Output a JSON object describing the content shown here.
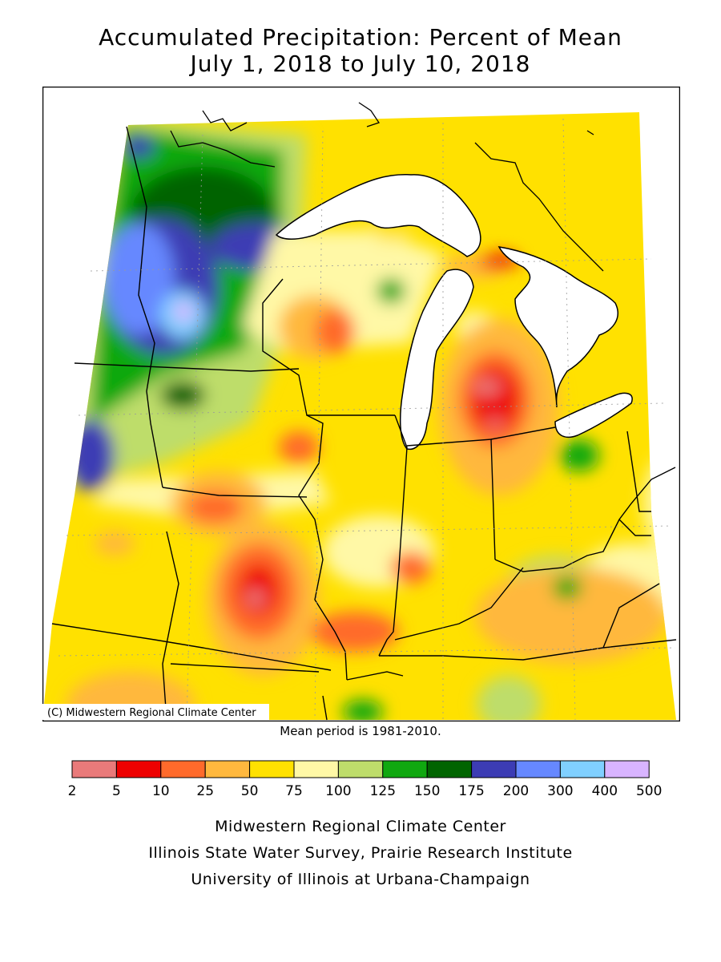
{
  "title_line1": "Accumulated Precipitation: Percent of Mean",
  "title_line2": "July 1, 2018 to July 10, 2018",
  "copyright": "(C) Midwestern Regional Climate Center",
  "mean_note": "Mean period is 1981-2010.",
  "legend": {
    "ticks": [
      "2",
      "5",
      "10",
      "25",
      "50",
      "75",
      "100",
      "125",
      "150",
      "175",
      "200",
      "300",
      "400",
      "500"
    ],
    "colors": [
      "#e97a7a",
      "#ee0000",
      "#ff6a2b",
      "#ffb83e",
      "#ffe100",
      "#fff8a6",
      "#bedd6b",
      "#10a810",
      "#006400",
      "#3c3cb4",
      "#6688ff",
      "#80d0ff",
      "#d8b4ff"
    ]
  },
  "footer": {
    "line1": "Midwestern Regional Climate Center",
    "line2": "Illinois State Water Survey, Prairie Research Institute",
    "line3": "University of Illinois at Urbana-Champaign"
  }
}
